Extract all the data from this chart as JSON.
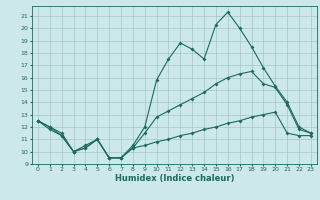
{
  "title": "",
  "xlabel": "Humidex (Indice chaleur)",
  "bg_color": "#cce8e8",
  "grid_color": "#9bbfbf",
  "line_color": "#1a6b5a",
  "xlim": [
    -0.5,
    23.5
  ],
  "ylim": [
    9,
    21.8
  ],
  "yticks": [
    9,
    10,
    11,
    12,
    13,
    14,
    15,
    16,
    17,
    18,
    19,
    20,
    21
  ],
  "xticks": [
    0,
    1,
    2,
    3,
    4,
    5,
    6,
    7,
    8,
    9,
    10,
    11,
    12,
    13,
    14,
    15,
    16,
    17,
    18,
    19,
    20,
    21,
    22,
    23
  ],
  "line1_x": [
    0,
    1,
    2,
    3,
    4,
    5,
    6,
    7,
    8,
    9,
    10,
    11,
    12,
    13,
    14,
    15,
    16,
    17,
    18,
    19,
    20,
    21,
    22,
    23
  ],
  "line1_y": [
    12.5,
    12.0,
    11.5,
    10.0,
    10.5,
    11.0,
    9.5,
    9.5,
    10.5,
    12.0,
    15.8,
    17.5,
    18.8,
    18.3,
    17.5,
    20.3,
    21.3,
    20.0,
    18.5,
    16.8,
    15.3,
    14.0,
    12.0,
    11.5
  ],
  "line2_x": [
    0,
    1,
    2,
    3,
    4,
    5,
    6,
    7,
    8,
    9,
    10,
    11,
    12,
    13,
    14,
    15,
    16,
    17,
    18,
    19,
    20,
    21,
    22,
    23
  ],
  "line2_y": [
    12.5,
    12.0,
    11.3,
    10.0,
    10.3,
    11.0,
    9.5,
    9.5,
    10.3,
    11.5,
    12.8,
    13.3,
    13.8,
    14.3,
    14.8,
    15.5,
    16.0,
    16.3,
    16.5,
    15.5,
    15.2,
    13.8,
    11.8,
    11.5
  ],
  "line3_x": [
    0,
    1,
    2,
    3,
    4,
    5,
    6,
    7,
    8,
    9,
    10,
    11,
    12,
    13,
    14,
    15,
    16,
    17,
    18,
    19,
    20,
    21,
    22,
    23
  ],
  "line3_y": [
    12.5,
    11.8,
    11.3,
    10.0,
    10.3,
    11.0,
    9.5,
    9.5,
    10.3,
    10.5,
    10.8,
    11.0,
    11.3,
    11.5,
    11.8,
    12.0,
    12.3,
    12.5,
    12.8,
    13.0,
    13.2,
    11.5,
    11.3,
    11.3
  ]
}
